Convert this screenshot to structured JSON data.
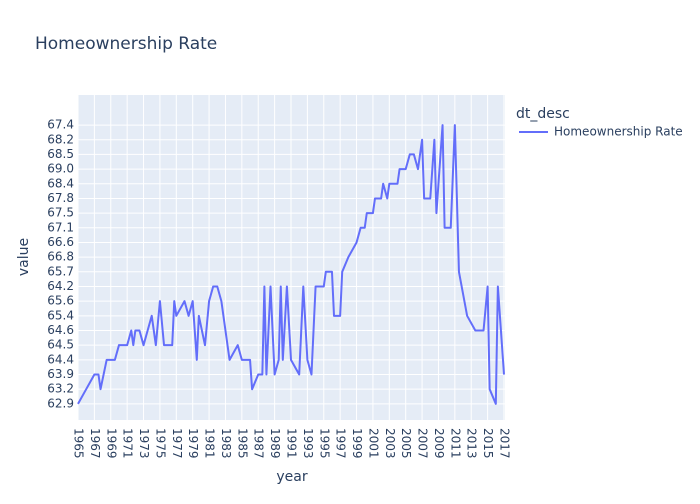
{
  "chart_data": {
    "type": "line",
    "title": "Homeownership Rate",
    "x_label": "year",
    "y_label": "value",
    "legend_title": "dt_desc",
    "legend_position": "right",
    "grid": true,
    "y_scale": "category",
    "xlim": [
      1965,
      2017
    ],
    "xticks": [
      1965,
      1967,
      1969,
      1971,
      1973,
      1975,
      1977,
      1979,
      1981,
      1983,
      1985,
      1987,
      1989,
      1991,
      1993,
      1995,
      1997,
      1999,
      2001,
      2003,
      2005,
      2007,
      2009,
      2011,
      2013,
      2015,
      2017
    ],
    "yticks": [
      62.9,
      63.2,
      63.9,
      64.4,
      64.5,
      64.6,
      65.4,
      65.6,
      64.2,
      65.7,
      66.8,
      66.6,
      67.1,
      67.5,
      67.8,
      68.4,
      {
        "value": 69,
        "label": "69.0"
      },
      68.5,
      68.2,
      67.4
    ],
    "x": [
      1965,
      1966,
      1967,
      1967.5,
      1967.75,
      1968.5,
      1969.5,
      1970,
      1971,
      1971.5,
      1971.75,
      1972,
      1972.5,
      1973,
      1973.5,
      1974,
      1974.5,
      1975,
      1975.5,
      1976.5,
      1976.75,
      1977,
      1978,
      1978.5,
      1979,
      1979.5,
      1979.75,
      1980.5,
      1981,
      1981.5,
      1982,
      1982.5,
      1983,
      1983.5,
      1984.5,
      1985,
      1986,
      1986.25,
      1987,
      1987.5,
      1987.75,
      1988,
      1988.5,
      1989,
      1989.5,
      1989.75,
      1990,
      1990.5,
      1991,
      1992,
      1992.5,
      1993,
      1993.5,
      1994,
      1995,
      1995.25,
      1996,
      1996.25,
      1997,
      1997.25,
      1998,
      1999,
      1999.5,
      2000,
      2000.25,
      2001,
      2001.25,
      2002,
      2002.25,
      2002.75,
      2003,
      2004,
      2004.25,
      2005,
      2005.5,
      2006,
      2006.5,
      2007,
      2007.25,
      2008,
      2008.5,
      2008.75,
      2009.5,
      2009.75,
      2010.5,
      2011,
      2011.5,
      2012.5,
      2013.5,
      2014.5,
      2015,
      2015.25,
      2016,
      2016.25,
      2017
    ],
    "series": [
      {
        "name": "Homeownership Rate",
        "color": "#636efa",
        "values": [
          62.9,
          63.2,
          63.9,
          63.9,
          63.2,
          64.4,
          64.4,
          64.5,
          64.5,
          64.6,
          64.5,
          64.6,
          64.6,
          64.5,
          64.6,
          65.4,
          64.5,
          65.6,
          64.5,
          64.5,
          65.6,
          65.4,
          65.6,
          65.4,
          65.6,
          64.4,
          65.4,
          64.5,
          65.6,
          64.2,
          64.2,
          65.6,
          64.6,
          64.4,
          64.5,
          64.4,
          64.4,
          63.2,
          63.9,
          63.9,
          64.2,
          63.9,
          64.2,
          63.9,
          64.4,
          64.2,
          64.4,
          64.2,
          64.4,
          63.9,
          64.2,
          64.4,
          63.9,
          64.2,
          64.2,
          65.7,
          65.7,
          65.4,
          65.4,
          65.7,
          66.8,
          66.6,
          67.1,
          67.1,
          67.5,
          67.5,
          67.8,
          67.8,
          68.4,
          67.8,
          68.4,
          68.4,
          69,
          69,
          68.5,
          68.5,
          69,
          68.2,
          67.8,
          67.8,
          68.2,
          67.5,
          67.4,
          67.1,
          67.1,
          67.4,
          65.7,
          65.4,
          64.6,
          64.6,
          64.2,
          63.2,
          62.9,
          64.2,
          63.9
        ]
      }
    ]
  }
}
